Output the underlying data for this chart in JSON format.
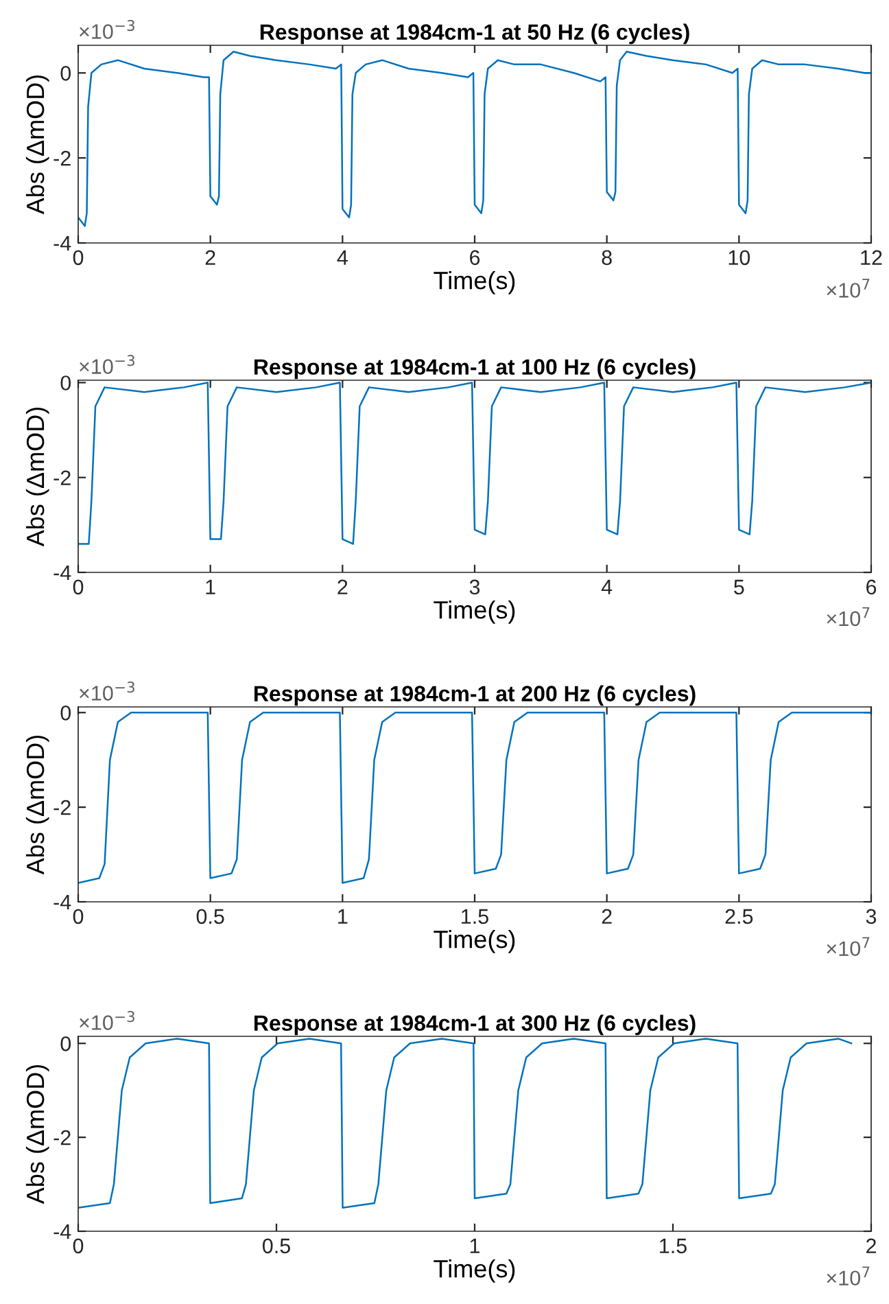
{
  "chart_data": [
    {
      "type": "line",
      "title": "Response at 1984cm-1 at 50 Hz (6 cycles)",
      "xlabel": "Time(s)",
      "ylabel": "Abs (ΔmOD)",
      "annotations": [
        "×10$^{−3}$",
        "×10$^{7}$"
      ],
      "xlim": [
        0,
        12
      ],
      "ylim": [
        -4,
        0.65
      ],
      "xticks": [
        0,
        2,
        4,
        6,
        8,
        10,
        12
      ],
      "yticks": [
        -4,
        -2,
        0
      ],
      "grid": false,
      "line_style": "solid",
      "marker": "none",
      "series": [
        {
          "color": "#0072bd",
          "x": [
            0,
            0.05,
            0.1,
            0.13,
            0.15,
            0.2,
            0.35,
            0.6,
            1.0,
            1.5,
            1.9,
            1.98,
            2.0,
            2.05,
            2.1,
            2.13,
            2.15,
            2.2,
            2.35,
            2.6,
            3.0,
            3.5,
            3.9,
            3.98,
            4.0,
            4.05,
            4.1,
            4.13,
            4.15,
            4.2,
            4.35,
            4.6,
            5.0,
            5.5,
            5.9,
            5.98,
            6.0,
            6.05,
            6.1,
            6.13,
            6.15,
            6.2,
            6.35,
            6.6,
            7.0,
            7.5,
            7.9,
            7.98,
            8.0,
            8.05,
            8.1,
            8.13,
            8.15,
            8.2,
            8.3,
            8.6,
            9.0,
            9.5,
            9.9,
            9.98,
            10.0,
            10.05,
            10.1,
            10.13,
            10.15,
            10.2,
            10.35,
            10.6,
            11.0,
            11.5,
            11.9,
            12.0
          ],
          "values": [
            -3.4,
            -3.5,
            -3.6,
            -3.3,
            -0.8,
            0.0,
            0.2,
            0.3,
            0.1,
            0.0,
            -0.1,
            -0.1,
            -2.9,
            -3.0,
            -3.1,
            -2.9,
            -0.5,
            0.3,
            0.5,
            0.4,
            0.3,
            0.2,
            0.1,
            0.2,
            -3.2,
            -3.3,
            -3.4,
            -3.1,
            -0.5,
            0.0,
            0.2,
            0.3,
            0.1,
            0.0,
            -0.1,
            0.0,
            -3.1,
            -3.2,
            -3.3,
            -3.0,
            -0.5,
            0.1,
            0.3,
            0.2,
            0.2,
            0.0,
            -0.2,
            -0.1,
            -2.8,
            -2.9,
            -3.0,
            -2.8,
            -0.3,
            0.3,
            0.5,
            0.4,
            0.3,
            0.2,
            0.0,
            0.1,
            -3.1,
            -3.2,
            -3.3,
            -3.0,
            -0.5,
            0.1,
            0.3,
            0.2,
            0.2,
            0.1,
            0.0,
            0.0
          ]
        }
      ]
    },
    {
      "type": "line",
      "title": "Response at 1984cm-1 at 100 Hz (6 cycles)",
      "xlabel": "Time(s)",
      "ylabel": "Abs (ΔmOD)",
      "annotations": [
        "×10$^{−3}$",
        "×10$^{7}$"
      ],
      "xlim": [
        0,
        6
      ],
      "ylim": [
        -4,
        0.05
      ],
      "xticks": [
        0,
        1,
        2,
        3,
        4,
        5,
        6
      ],
      "yticks": [
        -4,
        -2,
        0
      ],
      "grid": false,
      "line_style": "solid",
      "marker": "none",
      "series": [
        {
          "color": "#0072bd",
          "x": [
            0,
            0.08,
            0.1,
            0.13,
            0.2,
            0.5,
            0.8,
            0.98,
            1.0,
            1.08,
            1.1,
            1.13,
            1.2,
            1.5,
            1.8,
            1.98,
            2.0,
            2.08,
            2.1,
            2.13,
            2.2,
            2.5,
            2.8,
            2.98,
            3.0,
            3.08,
            3.1,
            3.13,
            3.2,
            3.5,
            3.8,
            3.98,
            4.0,
            4.08,
            4.1,
            4.13,
            4.2,
            4.5,
            4.8,
            4.98,
            5.0,
            5.08,
            5.1,
            5.13,
            5.2,
            5.5,
            5.8,
            6.0
          ],
          "values": [
            -3.4,
            -3.4,
            -2.5,
            -0.5,
            -0.1,
            -0.2,
            -0.1,
            0.0,
            -3.3,
            -3.3,
            -2.5,
            -0.5,
            -0.1,
            -0.2,
            -0.1,
            0.0,
            -3.3,
            -3.4,
            -2.5,
            -0.5,
            -0.1,
            -0.2,
            -0.1,
            0.0,
            -3.1,
            -3.2,
            -2.5,
            -0.5,
            -0.1,
            -0.2,
            -0.1,
            0.0,
            -3.1,
            -3.2,
            -2.5,
            -0.5,
            -0.1,
            -0.2,
            -0.1,
            0.0,
            -3.1,
            -3.2,
            -2.5,
            -0.5,
            -0.1,
            -0.2,
            -0.1,
            0.0
          ]
        }
      ]
    },
    {
      "type": "line",
      "title": "Response at 1984cm-1 at 200 Hz (6 cycles)",
      "xlabel": "Time(s)",
      "ylabel": "Abs (ΔmOD)",
      "annotations": [
        "×10$^{−3}$",
        "×10$^{7}$"
      ],
      "xlim": [
        0,
        3
      ],
      "ylim": [
        -4,
        0.12
      ],
      "xticks": [
        0,
        0.5,
        1,
        1.5,
        2,
        2.5,
        3
      ],
      "yticks": [
        -4,
        -2,
        0
      ],
      "grid": false,
      "line_style": "solid",
      "marker": "none",
      "series": [
        {
          "color": "#0072bd",
          "x": [
            0,
            0.08,
            0.1,
            0.12,
            0.15,
            0.2,
            0.35,
            0.49,
            0.5,
            0.58,
            0.6,
            0.62,
            0.65,
            0.7,
            0.85,
            0.99,
            1.0,
            1.08,
            1.1,
            1.12,
            1.15,
            1.2,
            1.35,
            1.49,
            1.5,
            1.58,
            1.6,
            1.62,
            1.65,
            1.7,
            1.85,
            1.99,
            2.0,
            2.08,
            2.1,
            2.12,
            2.15,
            2.2,
            2.35,
            2.49,
            2.5,
            2.58,
            2.6,
            2.62,
            2.65,
            2.7,
            2.85,
            3.0
          ],
          "values": [
            -3.6,
            -3.5,
            -3.2,
            -1.0,
            -0.2,
            0.0,
            0.0,
            0.0,
            -3.5,
            -3.4,
            -3.1,
            -1.0,
            -0.2,
            0.0,
            0.0,
            0.0,
            -3.6,
            -3.5,
            -3.1,
            -1.0,
            -0.2,
            0.0,
            0.0,
            0.0,
            -3.4,
            -3.3,
            -3.0,
            -1.0,
            -0.2,
            0.0,
            0.0,
            0.0,
            -3.4,
            -3.3,
            -3.0,
            -1.0,
            -0.2,
            0.0,
            0.0,
            0.0,
            -3.4,
            -3.3,
            -3.0,
            -1.0,
            -0.2,
            0.0,
            0.0,
            0.0
          ]
        }
      ]
    },
    {
      "type": "line",
      "title": "Response at 1984cm-1 at 300 Hz (6 cycles)",
      "xlabel": "Time(s)",
      "ylabel": "Abs (ΔmOD)",
      "annotations": [
        "×10$^{−3}$",
        "×10$^{7}$"
      ],
      "xlim": [
        0,
        2
      ],
      "ylim": [
        -4,
        0.15
      ],
      "xticks": [
        0,
        0.5,
        1,
        1.5,
        2
      ],
      "yticks": [
        -4,
        -2,
        0
      ],
      "grid": false,
      "line_style": "solid",
      "marker": "none",
      "series": [
        {
          "color": "#0072bd",
          "x": [
            0,
            0.08,
            0.09,
            0.11,
            0.13,
            0.17,
            0.25,
            0.33,
            0.333,
            0.413,
            0.423,
            0.443,
            0.463,
            0.503,
            0.583,
            0.663,
            0.667,
            0.747,
            0.757,
            0.777,
            0.797,
            0.837,
            0.917,
            0.997,
            1.0,
            1.08,
            1.09,
            1.11,
            1.13,
            1.17,
            1.25,
            1.33,
            1.333,
            1.413,
            1.423,
            1.443,
            1.463,
            1.503,
            1.583,
            1.663,
            1.667,
            1.747,
            1.757,
            1.777,
            1.797,
            1.837,
            1.917,
            1.95
          ],
          "values": [
            -3.5,
            -3.4,
            -3.0,
            -1.0,
            -0.3,
            0.0,
            0.1,
            0.0,
            -3.4,
            -3.3,
            -3.0,
            -1.0,
            -0.3,
            0.0,
            0.1,
            0.0,
            -3.5,
            -3.4,
            -3.0,
            -1.0,
            -0.3,
            0.0,
            0.1,
            0.0,
            -3.3,
            -3.2,
            -3.0,
            -1.0,
            -0.3,
            0.0,
            0.1,
            0.0,
            -3.3,
            -3.2,
            -3.0,
            -1.0,
            -0.3,
            0.0,
            0.1,
            0.0,
            -3.3,
            -3.2,
            -3.0,
            -1.0,
            -0.3,
            0.0,
            0.1,
            0.0
          ]
        }
      ]
    }
  ]
}
